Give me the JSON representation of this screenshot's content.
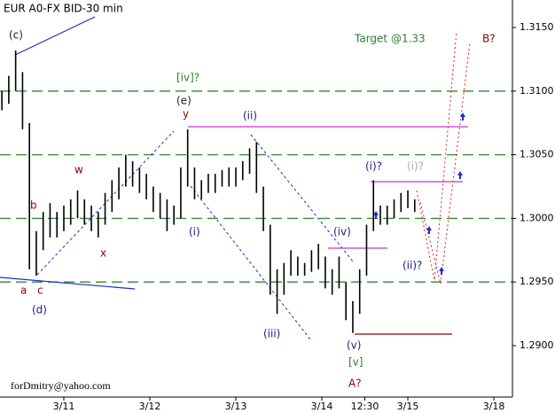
{
  "chart_data": {
    "type": "ohlc",
    "title": "EUR A0-FX BID-30 min",
    "color": "#000000",
    "x": [
      -0.72,
      -0.64,
      -0.56,
      -0.48,
      -0.4,
      -0.32,
      -0.24,
      -0.16,
      -0.08,
      0,
      0.08,
      0.16,
      0.24,
      0.32,
      0.4,
      0.48,
      0.56,
      0.64,
      0.72,
      0.8,
      0.88,
      0.96,
      1.04,
      1.12,
      1.2,
      1.28,
      1.36,
      1.44,
      1.52,
      1.6,
      1.68,
      1.76,
      1.84,
      1.92,
      2,
      2.08,
      2.16,
      2.24,
      2.32,
      2.4,
      2.48,
      2.56,
      2.64,
      2.72,
      2.8,
      2.88,
      2.96,
      3.04,
      3.12,
      3.2,
      3.28,
      3.36,
      3.44,
      3.52,
      3.6,
      3.68,
      3.76,
      3.84,
      3.92,
      4,
      4.08
    ],
    "high": [
      1.31,
      1.3112,
      1.3132,
      1.3115,
      1.3075,
      1.299,
      1.3005,
      1.3012,
      1.3005,
      1.301,
      1.3015,
      1.3022,
      1.3015,
      1.301,
      1.3005,
      1.302,
      1.303,
      1.304,
      1.305,
      1.3045,
      1.304,
      1.3035,
      1.3025,
      1.302,
      1.3015,
      1.301,
      1.304,
      1.307,
      1.304,
      1.303,
      1.3035,
      1.3035,
      1.3038,
      1.304,
      1.304,
      1.3045,
      1.3055,
      1.306,
      1.3025,
      1.2995,
      1.296,
      1.2965,
      1.2975,
      1.297,
      1.2965,
      1.2975,
      1.298,
      1.297,
      1.296,
      1.297,
      1.295,
      1.2935,
      1.296,
      1.2995,
      1.303,
      1.301,
      1.301,
      1.3015,
      1.302,
      1.3022,
      1.3015
    ],
    "low": [
      1.3085,
      1.309,
      1.31,
      1.307,
      1.296,
      1.2955,
      1.2975,
      1.2985,
      1.2985,
      1.299,
      1.2995,
      1.3,
      1.2995,
      1.299,
      1.2985,
      1.2995,
      1.3005,
      1.3015,
      1.3025,
      1.3025,
      1.302,
      1.3015,
      1.3005,
      1.3,
      1.299,
      1.2995,
      1.3,
      1.3025,
      1.3015,
      1.3015,
      1.302,
      1.302,
      1.3025,
      1.3025,
      1.3025,
      1.303,
      1.3035,
      1.302,
      1.299,
      1.294,
      1.2925,
      1.294,
      1.2955,
      1.2955,
      1.2955,
      1.2958,
      1.296,
      1.2945,
      1.294,
      1.2945,
      1.292,
      1.291,
      1.2925,
      1.2955,
      1.299,
      1.2995,
      1.2995,
      1.3,
      1.3005,
      1.3008,
      1.3005
    ],
    "xlim": [
      -0.742,
      5.216
    ],
    "xticks": [
      {
        "value": 0,
        "label": "3/11"
      },
      {
        "value": 1,
        "label": "3/12"
      },
      {
        "value": 2,
        "label": "3/13"
      },
      {
        "value": 3,
        "label": "3/14"
      },
      {
        "value": 3.5,
        "label": "12:30"
      },
      {
        "value": 4,
        "label": "3/15"
      },
      {
        "value": 5,
        "label": "3/18"
      }
    ],
    "ylim": [
      1.28596,
      1.31716
    ],
    "yticks": [
      {
        "value": 1.29,
        "label": "1.2900"
      },
      {
        "value": 1.295,
        "label": "1.2950"
      },
      {
        "value": 1.3,
        "label": "1.3000"
      },
      {
        "value": 1.305,
        "label": "1.3050"
      },
      {
        "value": 1.31,
        "label": "1.3100"
      },
      {
        "value": 1.315,
        "label": "1.3150"
      }
    ],
    "grid_lines": [
      1.295,
      1.3,
      1.305,
      1.31
    ],
    "annotations": [
      "(c)",
      "Target @1.33",
      "B?",
      "[iv]?",
      "(e)",
      "y",
      "(ii)",
      "w",
      "(i)?",
      "(i)?",
      "b",
      "(i)",
      "x",
      "(iv)",
      "(ii)?",
      "a",
      "c",
      "(d)",
      "(iii)",
      "(v)",
      "[v]",
      "A?",
      "forDmitry@yahoo.com"
    ]
  }
}
